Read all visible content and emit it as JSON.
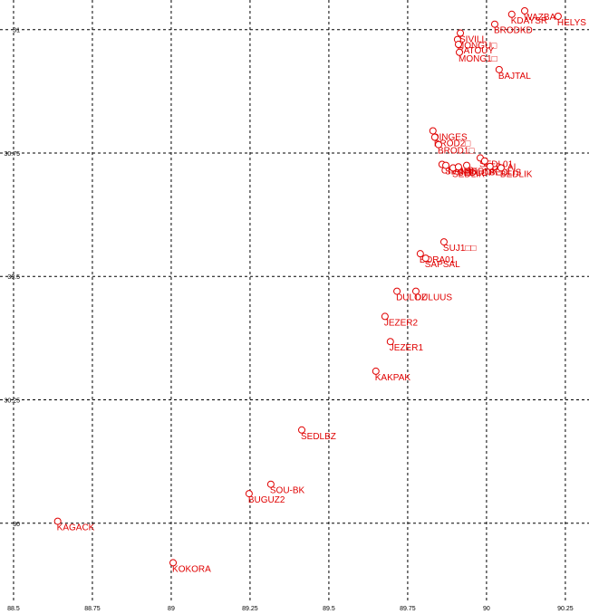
{
  "chart_data": {
    "type": "scatter",
    "x": [
      88.64,
      89.006,
      89.247,
      89.316,
      89.414,
      89.649,
      89.695,
      89.678,
      89.716,
      89.776,
      89.79,
      89.807,
      89.865,
      89.83,
      89.836,
      89.848,
      89.859,
      89.871,
      89.894,
      89.911,
      89.937,
      89.98,
      89.994,
      90.011,
      90.046,
      89.917,
      89.908,
      89.911,
      89.914,
      90.04,
      90.026,
      90.08,
      90.121,
      90.227
    ],
    "y": [
      30.004,
      29.92,
      30.06,
      30.079,
      30.189,
      30.308,
      30.368,
      30.419,
      30.47,
      30.47,
      30.546,
      30.537,
      30.57,
      30.795,
      30.782,
      30.767,
      30.727,
      30.725,
      30.72,
      30.722,
      30.725,
      30.74,
      30.734,
      30.723,
      30.72,
      30.993,
      30.98,
      30.97,
      30.954,
      30.919,
      31.011,
      31.031,
      31.038,
      31.027
    ],
    "labels": [
      "KAGACK",
      "KOKORA",
      "BUGUZ2",
      "SOU-BK",
      "SEDLBZ",
      "KAKPAK",
      "JEZER1",
      "JEZER2",
      "DULOZ",
      "DULUUS",
      "BORA01",
      "SAPSAL",
      "SUJ1□□",
      "QINGES",
      "BROD2□",
      "BROD1□",
      "CHAMB",
      "SEDLIB",
      "SEDLIR",
      "SEDLOP",
      "SEDLIK",
      "SEDL01",
      "SEDLAI",
      "SEDLIS",
      "BEDLIK",
      "SIVILL",
      "MONGU□",
      "BATOUY",
      "MONG1□",
      "BAJTAL",
      "BRODKD",
      "KDAYSR",
      "WAZBA",
      "HELYS"
    ],
    "color": "#e00000",
    "xlim": [
      88.457,
      90.325
    ],
    "ylim": [
      29.84,
      31.06
    ],
    "xticks": [
      88.5,
      88.75,
      89,
      89.25,
      89.5,
      89.75,
      90,
      90.25
    ],
    "yticks": [
      30,
      30.25,
      30.5,
      30.75,
      31
    ],
    "grid": true
  }
}
